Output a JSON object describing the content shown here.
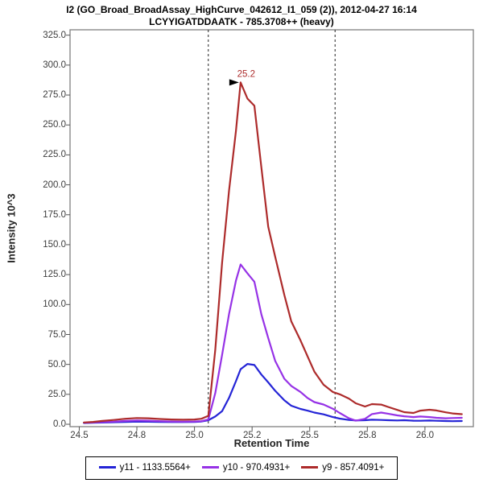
{
  "header": {
    "title_line1": "I2 (GO_Broad_BroadAssay_HighCurve_042612_I1_059 (2)), 2012-04-27 16:14",
    "title_line2": "LCYYIGATDDAATK - 785.3708++ (heavy)"
  },
  "chart_data": {
    "type": "line",
    "title": "I2 (GO_Broad_BroadAssay_HighCurve_042612_I1_059 (2)), 2012-04-27 16:14",
    "subtitle": "LCYYIGATDDAATK - 785.3708++ (heavy)",
    "xlabel": "Retention Time",
    "ylabel": "Intensity 10^3",
    "xlim": [
      24.46,
      26.21
    ],
    "ylim": [
      -2,
      329.5
    ],
    "grid": false,
    "legend_position": "bottom",
    "x_ticks": {
      "values": [
        24.5,
        24.75,
        25.0,
        25.25,
        25.5,
        25.75,
        26.0
      ],
      "labels": [
        "24.5",
        "24.8",
        "25.0",
        "25.2",
        "25.5",
        "25.8",
        "26.0"
      ]
    },
    "y_ticks": {
      "values": [
        0,
        25,
        50,
        75,
        100,
        125,
        150,
        175,
        200,
        225,
        250,
        275,
        300,
        325
      ],
      "labels": [
        "0.0",
        "25.0",
        "50.0",
        "75.0",
        "100.0",
        "125.0",
        "150.0",
        "175.0",
        "200.0",
        "225.0",
        "250.0",
        "275.0",
        "300.0",
        "325.0"
      ]
    },
    "boundary_lines": [
      25.06,
      25.61
    ],
    "peak_annotation": {
      "label": "25.2",
      "time": 25.2,
      "intensity": 285.5
    },
    "x": [
      24.52,
      24.56,
      24.6,
      24.65,
      24.7,
      24.75,
      24.8,
      24.85,
      24.9,
      24.95,
      25.0,
      25.03,
      25.06,
      25.09,
      25.12,
      25.15,
      25.18,
      25.2,
      25.23,
      25.26,
      25.29,
      25.32,
      25.35,
      25.39,
      25.42,
      25.46,
      25.49,
      25.52,
      25.56,
      25.6,
      25.63,
      25.67,
      25.7,
      25.74,
      25.77,
      25.81,
      25.84,
      25.88,
      25.91,
      25.95,
      25.98,
      26.02,
      26.05,
      26.09,
      26.12,
      26.16
    ],
    "series": [
      {
        "name": "y11 - 1133.5564+",
        "color": "#2424d6",
        "values": [
          1.0,
          1.2,
          1.4,
          1.7,
          2.0,
          2.2,
          2.1,
          1.9,
          1.8,
          1.8,
          2.0,
          2.3,
          3.4,
          6.5,
          11,
          22,
          36,
          46,
          50.4,
          49.5,
          41.6,
          35,
          28,
          20,
          15.5,
          12.8,
          11.4,
          9.8,
          8.3,
          6.0,
          4.7,
          3.6,
          3.2,
          3.4,
          3.8,
          3.6,
          3.4,
          3.2,
          3.4,
          3.0,
          2.9,
          3.1,
          2.9,
          2.7,
          2.6,
          2.7
        ]
      },
      {
        "name": "y10 - 970.4931+",
        "color": "#9632e6",
        "values": [
          1.2,
          1.5,
          1.8,
          2.2,
          2.8,
          3.2,
          3.0,
          2.6,
          2.3,
          2.2,
          2.3,
          2.6,
          4.0,
          26,
          58,
          92,
          120,
          133.5,
          126,
          119,
          92,
          72,
          53,
          38,
          32,
          27,
          22,
          18.5,
          16.5,
          13.0,
          9.4,
          5.0,
          3.0,
          4.5,
          8.5,
          9.8,
          8.8,
          7.4,
          6.7,
          6.0,
          6.5,
          6.0,
          5.4,
          5.0,
          5.2,
          5.4
        ]
      },
      {
        "name": "y9 - 857.4091+",
        "color": "#ad2b2b",
        "values": [
          1.5,
          2.0,
          2.8,
          3.6,
          4.6,
          5.2,
          5.0,
          4.4,
          4.0,
          3.8,
          4.0,
          4.6,
          7.0,
          62,
          135,
          195,
          245,
          285.5,
          272,
          266,
          215,
          165,
          140,
          108,
          86,
          70,
          57,
          44,
          33,
          27,
          25,
          21.5,
          17.5,
          14.8,
          16.8,
          16.4,
          14.5,
          12.0,
          10.1,
          9.4,
          11.4,
          12.1,
          11.5,
          10.0,
          9.0,
          8.4
        ]
      }
    ]
  },
  "colors": {
    "plot_border": "#808080",
    "tick": "#555555",
    "boundary": "#222222",
    "annotation_arrow": "#000000"
  }
}
